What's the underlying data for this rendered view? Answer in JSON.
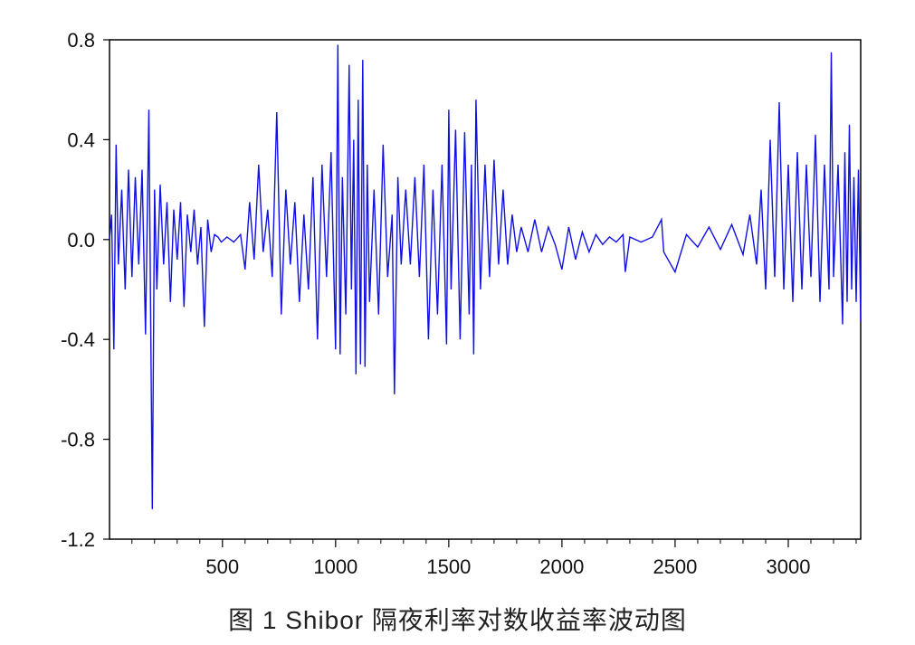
{
  "caption": "图 1    Shibor 隔夜利率对数收益率波动图",
  "colors": {
    "series": "#1010e6",
    "axis": "#000000",
    "background": "#ffffff"
  },
  "chart_data": {
    "type": "line",
    "title": "",
    "xlabel": "",
    "ylabel": "",
    "xlim": [
      1,
      3320
    ],
    "ylim": [
      -1.2,
      0.8
    ],
    "grid": false,
    "legend": "none",
    "x_ticks": [
      500,
      1000,
      1500,
      2000,
      2500,
      3000
    ],
    "x_tick_labels": [
      "500",
      "1000",
      "1500",
      "2000",
      "2500",
      "3000"
    ],
    "y_ticks": [
      0.8,
      0.4,
      0.0,
      -0.4,
      -0.8,
      -1.2
    ],
    "y_tick_labels": [
      "0.8",
      "0.4",
      "0.0",
      "-0.4",
      "-0.8",
      "-1.2"
    ],
    "series": [
      {
        "color": "#1010e6",
        "x": [
          1,
          10,
          20,
          30,
          40,
          55,
          70,
          85,
          100,
          115,
          130,
          145,
          160,
          175,
          190,
          200,
          210,
          225,
          240,
          255,
          270,
          285,
          300,
          315,
          330,
          345,
          360,
          375,
          390,
          405,
          420,
          435,
          450,
          465,
          480,
          495,
          520,
          550,
          580,
          600,
          620,
          640,
          660,
          680,
          700,
          720,
          740,
          760,
          780,
          800,
          820,
          840,
          860,
          880,
          900,
          920,
          940,
          960,
          980,
          1000,
          1010,
          1020,
          1030,
          1045,
          1060,
          1070,
          1080,
          1090,
          1100,
          1110,
          1120,
          1130,
          1140,
          1150,
          1170,
          1190,
          1210,
          1230,
          1250,
          1260,
          1275,
          1290,
          1310,
          1330,
          1350,
          1370,
          1390,
          1410,
          1430,
          1450,
          1470,
          1490,
          1500,
          1510,
          1530,
          1550,
          1570,
          1590,
          1600,
          1610,
          1620,
          1640,
          1660,
          1680,
          1700,
          1720,
          1740,
          1760,
          1780,
          1800,
          1820,
          1850,
          1880,
          1910,
          1940,
          1970,
          2000,
          2030,
          2060,
          2090,
          2120,
          2150,
          2180,
          2210,
          2240,
          2270,
          2280,
          2300,
          2350,
          2400,
          2440,
          2450,
          2500,
          2550,
          2600,
          2650,
          2700,
          2750,
          2800,
          2830,
          2860,
          2880,
          2900,
          2920,
          2940,
          2960,
          2980,
          3000,
          3020,
          3040,
          3060,
          3080,
          3100,
          3120,
          3140,
          3160,
          3180,
          3190,
          3200,
          3220,
          3240,
          3250,
          3260,
          3270,
          3280,
          3290,
          3300,
          3310,
          3320
        ],
        "y": [
          0.0,
          0.1,
          -0.44,
          0.38,
          -0.1,
          0.2,
          -0.2,
          0.28,
          -0.15,
          0.25,
          -0.1,
          0.28,
          -0.38,
          0.52,
          -1.08,
          0.2,
          -0.2,
          0.22,
          -0.1,
          0.15,
          -0.25,
          0.12,
          -0.08,
          0.15,
          -0.27,
          0.1,
          -0.05,
          0.12,
          -0.1,
          0.05,
          -0.35,
          0.08,
          -0.05,
          0.02,
          0.01,
          -0.01,
          0.01,
          -0.01,
          0.02,
          -0.12,
          0.15,
          -0.08,
          0.3,
          -0.05,
          0.12,
          -0.15,
          0.51,
          -0.3,
          0.2,
          -0.1,
          0.15,
          -0.25,
          0.1,
          -0.2,
          0.25,
          -0.4,
          0.3,
          -0.15,
          0.35,
          -0.44,
          0.78,
          -0.46,
          0.25,
          -0.3,
          0.7,
          -0.2,
          0.4,
          -0.54,
          0.56,
          -0.5,
          0.72,
          -0.51,
          0.3,
          -0.25,
          0.2,
          -0.3,
          0.38,
          -0.15,
          0.1,
          -0.62,
          0.25,
          -0.1,
          0.2,
          -0.1,
          0.25,
          -0.15,
          0.3,
          -0.4,
          0.2,
          -0.3,
          0.3,
          -0.42,
          0.52,
          -0.2,
          0.44,
          -0.4,
          0.43,
          -0.3,
          0.3,
          -0.46,
          0.56,
          -0.2,
          0.3,
          -0.15,
          0.32,
          -0.1,
          0.2,
          -0.1,
          0.1,
          -0.05,
          0.05,
          -0.05,
          0.08,
          -0.05,
          0.05,
          -0.02,
          -0.12,
          0.05,
          -0.08,
          0.03,
          -0.05,
          0.02,
          -0.02,
          0.01,
          -0.01,
          0.02,
          -0.13,
          0.01,
          -0.01,
          0.01,
          0.08,
          -0.05,
          -0.13,
          0.02,
          -0.03,
          0.05,
          -0.04,
          0.06,
          -0.06,
          0.1,
          -0.1,
          0.2,
          -0.2,
          0.4,
          -0.15,
          0.55,
          -0.2,
          0.3,
          -0.25,
          0.35,
          -0.2,
          0.3,
          -0.15,
          0.42,
          -0.25,
          0.3,
          -0.2,
          0.75,
          -0.15,
          0.3,
          -0.34,
          0.35,
          -0.25,
          0.46,
          -0.2,
          0.25,
          -0.25,
          0.28,
          -0.33
        ]
      }
    ]
  }
}
